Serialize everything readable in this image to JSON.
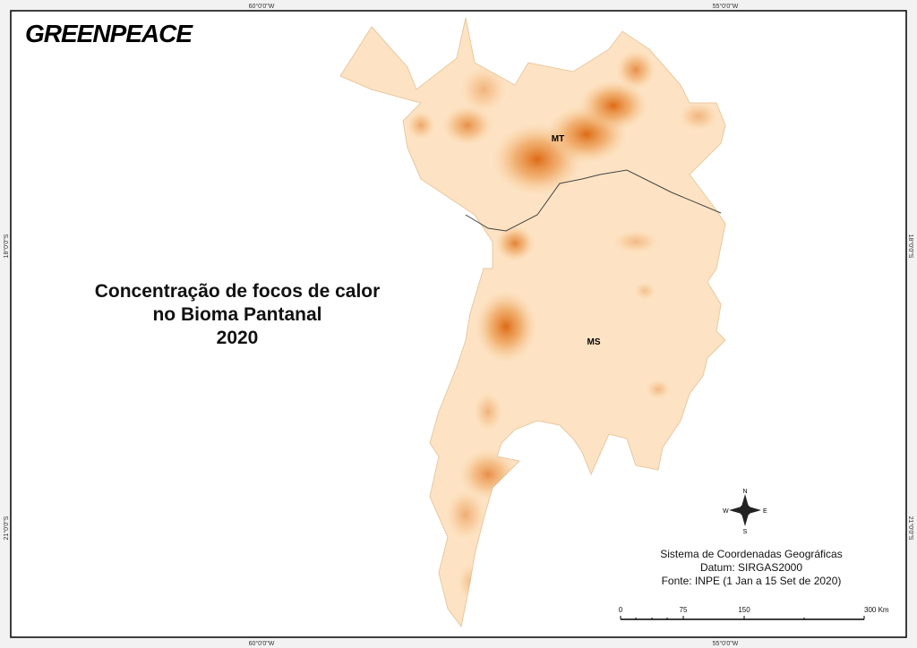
{
  "logo": "GREENPEACE",
  "title": {
    "lines": [
      "Concentração de focos de calor",
      "no Bioma Pantanal",
      "2020"
    ]
  },
  "regions": {
    "mt": "MT",
    "ms": "MS"
  },
  "grid_labels": {
    "top": [
      "60°0'0\"W",
      "55°0'0\"W"
    ],
    "bottom": [
      "60°0'0\"W",
      "55°0'0\"W"
    ],
    "left": [
      "18°0'0\"S",
      "21°0'0\"S"
    ],
    "right": [
      "18°0'0\"S",
      "21°0'0\"S"
    ]
  },
  "compass": {
    "n": "N",
    "s": "S",
    "e": "E",
    "w": "W"
  },
  "info": [
    "Sistema de Coordenadas Geográficas",
    "Datum: SIRGAS2000",
    "Fonte: INPE (1 Jan a 15 Set de 2020)"
  ],
  "scale_bar": {
    "labels": [
      "0",
      "75",
      "150",
      "300 Km"
    ]
  }
}
